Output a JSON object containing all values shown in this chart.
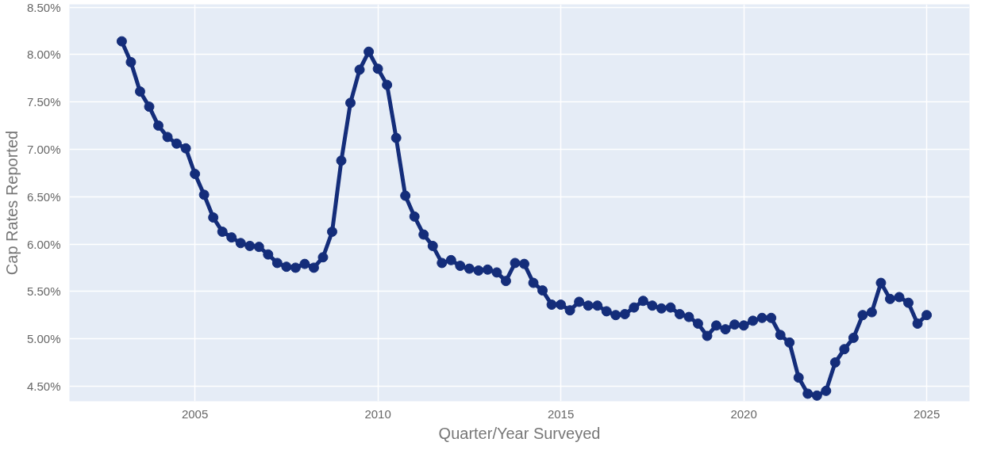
{
  "chart_data": {
    "type": "line",
    "xlabel": "Quarter/Year Surveyed",
    "ylabel": "Cap Rates Reported",
    "x": [
      2003.0,
      2003.25,
      2003.5,
      2003.75,
      2004.0,
      2004.25,
      2004.5,
      2004.75,
      2005.0,
      2005.25,
      2005.5,
      2005.75,
      2006.0,
      2006.25,
      2006.5,
      2006.75,
      2007.0,
      2007.25,
      2007.5,
      2007.75,
      2008.0,
      2008.25,
      2008.5,
      2008.75,
      2009.0,
      2009.25,
      2009.5,
      2009.75,
      2010.0,
      2010.25,
      2010.5,
      2010.75,
      2011.0,
      2011.25,
      2011.5,
      2011.75,
      2012.0,
      2012.25,
      2012.5,
      2012.75,
      2013.0,
      2013.25,
      2013.5,
      2013.75,
      2014.0,
      2014.25,
      2014.5,
      2014.75,
      2015.0,
      2015.25,
      2015.5,
      2015.75,
      2016.0,
      2016.25,
      2016.5,
      2016.75,
      2017.0,
      2017.25,
      2017.5,
      2017.75,
      2018.0,
      2018.25,
      2018.5,
      2018.75,
      2019.0,
      2019.25,
      2019.5,
      2019.75,
      2020.0,
      2020.25,
      2020.5,
      2020.75,
      2021.0,
      2021.25,
      2021.5,
      2021.75,
      2022.0,
      2022.25,
      2022.5,
      2022.75,
      2023.0,
      2023.25,
      2023.5,
      2023.75,
      2024.0,
      2024.25,
      2024.5,
      2024.75,
      2025.0
    ],
    "series": [
      {
        "color": "#142d7a",
        "values": [
          8.14,
          7.92,
          7.61,
          7.45,
          7.25,
          7.13,
          7.06,
          7.01,
          6.74,
          6.52,
          6.28,
          6.13,
          6.07,
          6.01,
          5.98,
          5.97,
          5.89,
          5.8,
          5.76,
          5.75,
          5.79,
          5.75,
          5.86,
          6.13,
          6.88,
          7.49,
          7.84,
          8.03,
          7.85,
          7.68,
          7.12,
          6.51,
          6.29,
          6.1,
          5.98,
          5.8,
          5.83,
          5.77,
          5.74,
          5.72,
          5.73,
          5.7,
          5.61,
          5.8,
          5.79,
          5.59,
          5.51,
          5.36,
          5.36,
          5.3,
          5.39,
          5.35,
          5.35,
          5.29,
          5.25,
          5.26,
          5.33,
          5.4,
          5.35,
          5.32,
          5.33,
          5.26,
          5.23,
          5.16,
          5.03,
          5.14,
          5.1,
          5.15,
          5.14,
          5.19,
          5.22,
          5.22,
          5.04,
          4.96,
          4.59,
          4.42,
          4.4,
          4.45,
          4.75,
          4.89,
          5.01,
          5.25,
          5.28,
          5.59,
          5.42,
          5.44,
          5.38,
          5.16,
          5.25
        ]
      }
    ],
    "xlim": [
      2001.57,
      2026.17
    ],
    "xticks": [
      2005,
      2010,
      2015,
      2020,
      2025
    ],
    "ylim": [
      4.34,
      8.53
    ],
    "yticks": [
      {
        "value": 4.5,
        "label": "4.50%"
      },
      {
        "value": 5.0,
        "label": "5.00%"
      },
      {
        "value": 5.5,
        "label": "5.50%"
      },
      {
        "value": 6.0,
        "label": "6.00%"
      },
      {
        "value": 6.5,
        "label": "6.50%"
      },
      {
        "value": 7.0,
        "label": "7.00%"
      },
      {
        "value": 7.5,
        "label": "7.50%"
      },
      {
        "value": 8.0,
        "label": "8.00%"
      },
      {
        "value": 8.5,
        "label": "8.50%"
      }
    ],
    "grid": true,
    "marker": "circle",
    "line_style": "solid"
  }
}
